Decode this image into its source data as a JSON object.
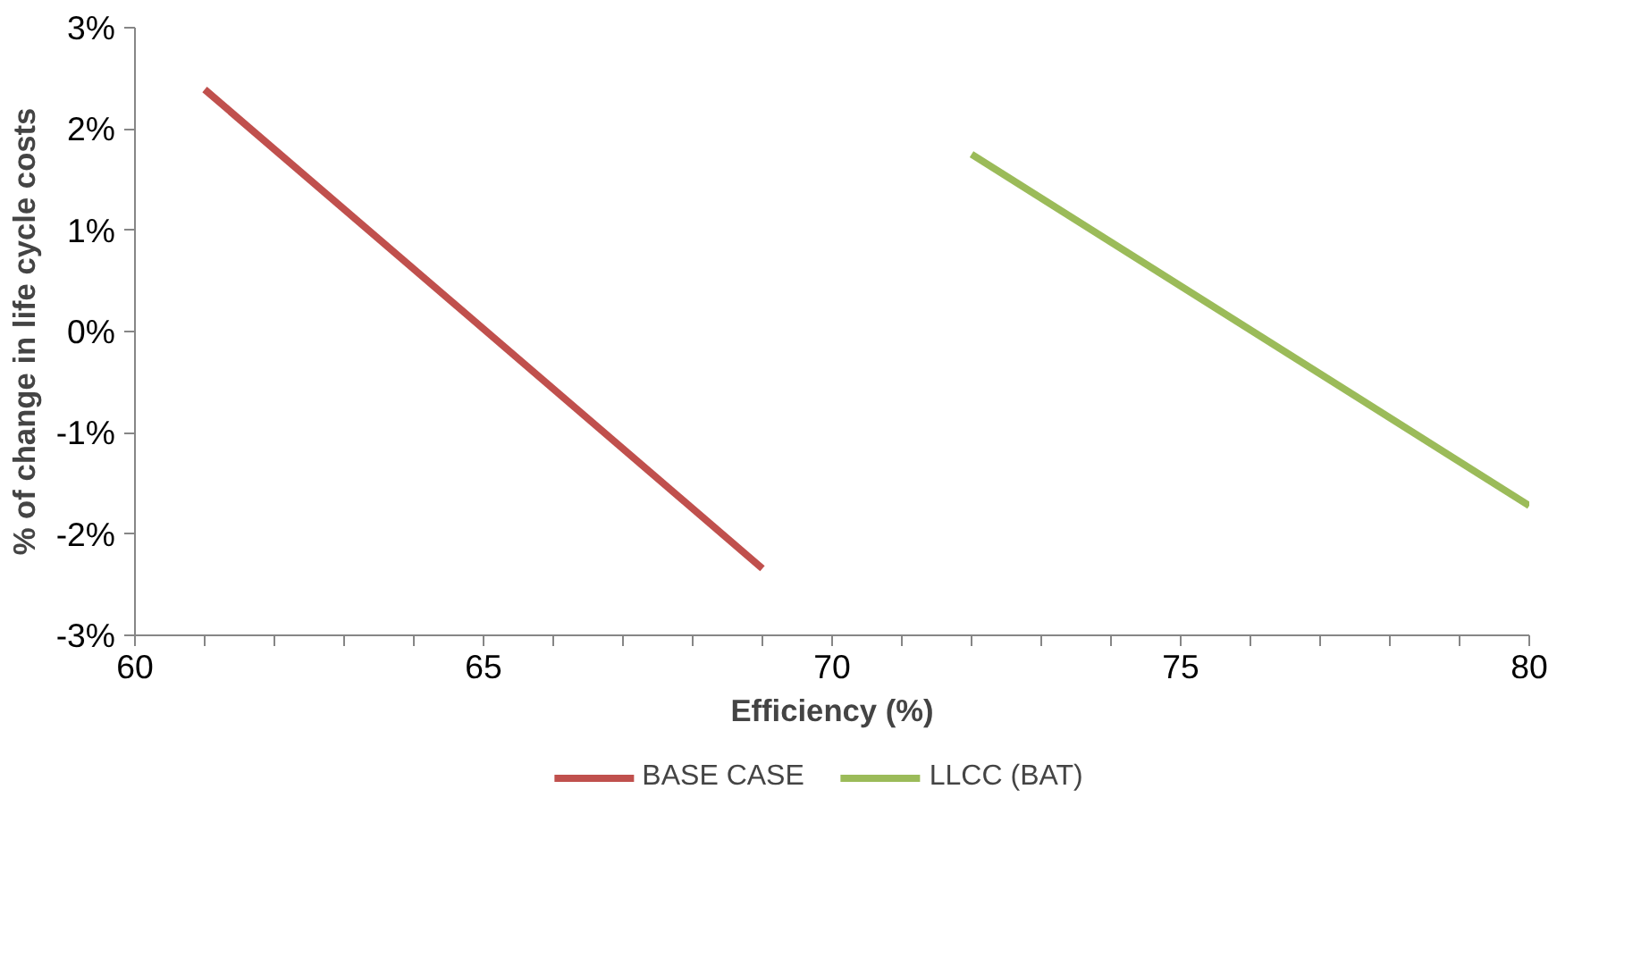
{
  "chart_data": {
    "type": "line",
    "xlabel": "Efficiency (%)",
    "ylabel": "% of change in life cycle costs",
    "series": [
      {
        "name": "BASE CASE",
        "color": "#c0504d",
        "x": [
          61,
          69
        ],
        "values": [
          2.39,
          -2.34
        ]
      },
      {
        "name": "LLCC (BAT)",
        "color": "#9bbb59",
        "x": [
          72,
          80
        ],
        "values": [
          1.75,
          -1.72
        ]
      }
    ],
    "xlim": [
      60,
      80
    ],
    "xticks": [
      60,
      {
        "value": 61,
        "label": null
      },
      {
        "value": 62,
        "label": null
      },
      {
        "value": 63,
        "label": null
      },
      {
        "value": 64,
        "label": null
      },
      65,
      {
        "value": 66,
        "label": null
      },
      {
        "value": 67,
        "label": null
      },
      {
        "value": 68,
        "label": null
      },
      {
        "value": 69,
        "label": null
      },
      70,
      {
        "value": 71,
        "label": null
      },
      {
        "value": 72,
        "label": null
      },
      {
        "value": 73,
        "label": null
      },
      {
        "value": 74,
        "label": null
      },
      75,
      {
        "value": 76,
        "label": null
      },
      {
        "value": 77,
        "label": null
      },
      {
        "value": 78,
        "label": null
      },
      {
        "value": 79,
        "label": null
      },
      80
    ],
    "ylim": [
      -3,
      3
    ],
    "yticks": [
      {
        "value": -3,
        "label": "-3%"
      },
      {
        "value": -2,
        "label": "-2%"
      },
      {
        "value": -1,
        "label": "-1%"
      },
      {
        "value": 0,
        "label": "0%"
      },
      {
        "value": 1,
        "label": "1%"
      },
      {
        "value": 2,
        "label": "2%"
      },
      {
        "value": 3,
        "label": "3%"
      }
    ],
    "grid": false,
    "legend": "bottom",
    "marker": "none",
    "line_style": "solid"
  }
}
